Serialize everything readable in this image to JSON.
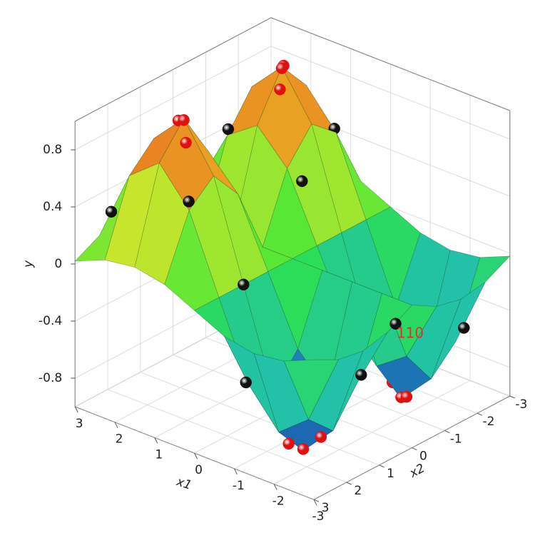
{
  "chart_data": {
    "type": "surface3d",
    "x1label": "x1",
    "x2label": "x2",
    "ylabel": "y",
    "annotation": "110",
    "x1lim": [
      -3,
      3
    ],
    "x2lim": [
      -3,
      3
    ],
    "ylim": [
      -1,
      1
    ],
    "x1ticks": [
      -3,
      -2,
      -1,
      0,
      1,
      2,
      3
    ],
    "x2ticks": [
      -3,
      -2,
      -1,
      0,
      1,
      2,
      3
    ],
    "yticks": [
      -0.8,
      -0.4,
      0,
      0.4,
      0.8
    ],
    "grid": true,
    "colormap": [
      "#1a2fa8",
      "#1fb8c0",
      "#2ee83a",
      "#e8e42a",
      "#e8401a"
    ],
    "surface": {
      "x1": [
        -3,
        -2.25,
        -1.5,
        -0.75,
        0,
        0.75,
        1.5,
        2.25,
        3
      ],
      "x2": [
        -3,
        -2.25,
        -1.5,
        -0.75,
        0,
        0.75,
        1.5,
        2.25,
        3
      ],
      "z": [
        [
          -0.02,
          -0.11,
          -0.14,
          -0.1,
          0,
          -0.1,
          -0.14,
          -0.11,
          -0.02
        ],
        [
          -0.11,
          -0.61,
          -0.78,
          -0.53,
          0,
          -0.53,
          -0.78,
          -0.61,
          -0.11
        ],
        [
          -0.14,
          -0.78,
          -1,
          -0.68,
          0,
          -0.68,
          -1,
          -0.78,
          -0.14
        ],
        [
          -0.1,
          -0.53,
          -0.68,
          -0.46,
          0,
          -0.46,
          -0.68,
          -0.53,
          -0.1
        ],
        [
          0,
          0,
          0,
          0,
          0,
          0,
          0,
          0,
          0
        ],
        [
          0.1,
          0.53,
          0.68,
          0.46,
          0,
          0.46,
          0.68,
          0.53,
          0.1
        ],
        [
          0.14,
          0.78,
          1,
          0.68,
          0,
          0.68,
          1,
          0.78,
          0.14
        ],
        [
          0.11,
          0.61,
          0.78,
          0.53,
          0,
          0.53,
          0.78,
          0.61,
          0.11
        ],
        [
          0.02,
          0.11,
          0.14,
          0.1,
          0,
          0.1,
          0.14,
          0.11,
          0.02
        ]
      ]
    },
    "series": [
      {
        "color": "#e01010",
        "x1": [
          1.5,
          1.2,
          1.8,
          1.5,
          1.3,
          1.7,
          -1.5,
          -1.3,
          -1.7,
          -1.5,
          -1.2,
          -1.8
        ],
        "x2": [
          1.5,
          1.8,
          1.3,
          -1.5,
          -1.2,
          -1.8,
          1.5,
          1.7,
          1.2,
          -1.5,
          -1.6,
          -1.3
        ],
        "y": [
          0.99,
          0.9,
          0.93,
          0.99,
          0.9,
          0.95,
          -0.99,
          -0.95,
          -0.92,
          -0.99,
          -0.93,
          -0.93
        ]
      },
      {
        "color": "#111111",
        "x1": [
          2.5,
          0.8,
          2.2,
          0.5,
          2.6,
          1,
          -0.8,
          -2.3,
          -0.6,
          -2.5,
          0,
          -3,
          2.8
        ],
        "x2": [
          2.5,
          2.2,
          0.8,
          -0.9,
          -1.2,
          -2.5,
          2.4,
          0.7,
          -2,
          -2.2,
          1.5,
          0.5,
          -2.8
        ],
        "y": [
          0.36,
          0.58,
          0.58,
          0.38,
          0.48,
          0.5,
          -0.49,
          -0.48,
          -0.51,
          -0.48,
          0,
          -0.07,
          0.05
        ]
      }
    ]
  }
}
